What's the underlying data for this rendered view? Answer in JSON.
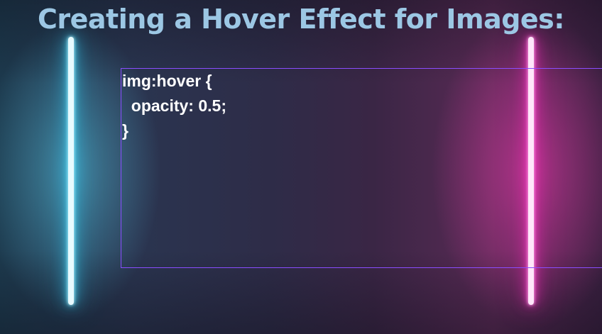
{
  "slide": {
    "title": "Creating a Hover Effect for Images:",
    "code_lines": [
      "img:hover {",
      "  opacity: 0.5;",
      "}"
    ]
  },
  "colors": {
    "title": "#9cc7e4",
    "selection_border": "#8a4dff",
    "neon_left": "#33c8f0",
    "neon_right": "#ff2bbf",
    "code_text": "#ffffff"
  }
}
